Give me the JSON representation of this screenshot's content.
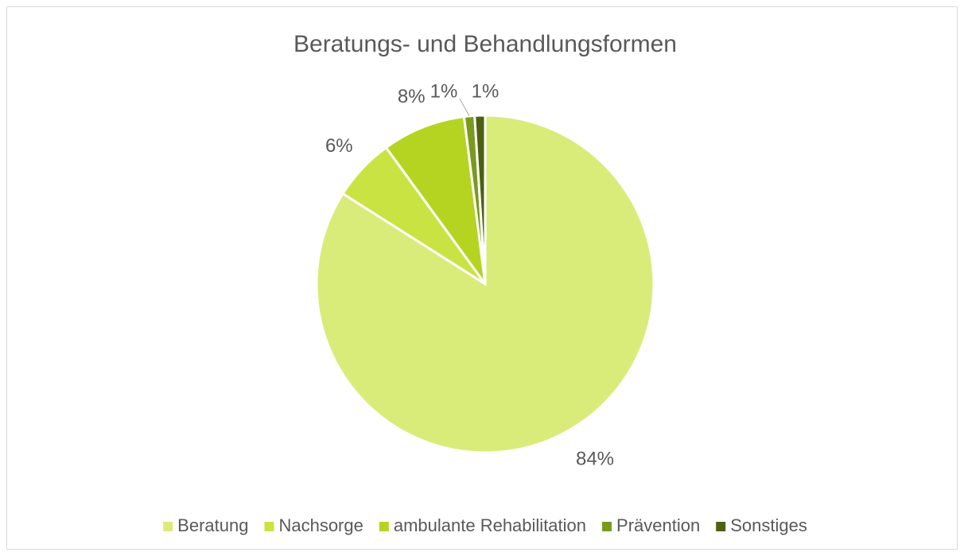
{
  "chart_data": {
    "type": "pie",
    "title": "Beratungs- und Behandlungsformen",
    "categories": [
      "Beratung",
      "Nachsorge",
      "ambulante Rehabilitation",
      "Prävention",
      "Sonstiges"
    ],
    "values": [
      84,
      6,
      8,
      1,
      1
    ],
    "value_labels": [
      "84%",
      "6%",
      "8%",
      "1%",
      "1%"
    ],
    "colors": [
      "#d9ec7a",
      "#c9e343",
      "#b5d421",
      "#7a9a1e",
      "#4d6111"
    ],
    "legend": "bottom"
  }
}
